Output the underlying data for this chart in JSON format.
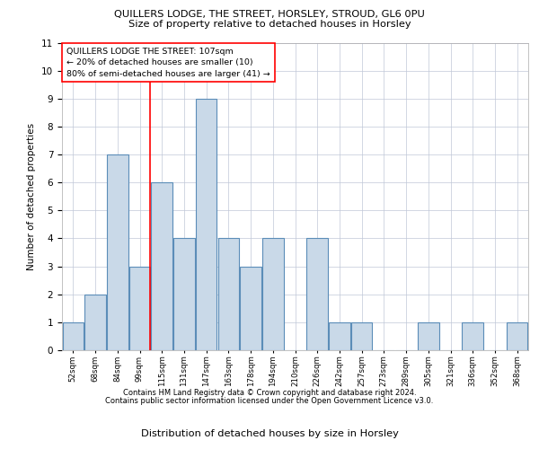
{
  "title1": "QUILLERS LODGE, THE STREET, HORSLEY, STROUD, GL6 0PU",
  "title2": "Size of property relative to detached houses in Horsley",
  "xlabel": "Distribution of detached houses by size in Horsley",
  "ylabel": "Number of detached properties",
  "categories": [
    "52sqm",
    "68sqm",
    "84sqm",
    "99sqm",
    "115sqm",
    "131sqm",
    "147sqm",
    "163sqm",
    "178sqm",
    "194sqm",
    "210sqm",
    "226sqm",
    "242sqm",
    "257sqm",
    "273sqm",
    "289sqm",
    "305sqm",
    "321sqm",
    "336sqm",
    "352sqm",
    "368sqm"
  ],
  "values": [
    1,
    2,
    7,
    3,
    6,
    4,
    9,
    4,
    3,
    4,
    0,
    4,
    1,
    1,
    0,
    0,
    1,
    0,
    1,
    0,
    1
  ],
  "bar_color": "#c9d9e8",
  "bar_edge_color": "#5b8db8",
  "red_line_index": 3,
  "annotation_title": "QUILLERS LODGE THE STREET: 107sqm",
  "annotation_line2": "← 20% of detached houses are smaller (10)",
  "annotation_line3": "80% of semi-detached houses are larger (41) →",
  "footer1": "Contains HM Land Registry data © Crown copyright and database right 2024.",
  "footer2": "Contains public sector information licensed under the Open Government Licence v3.0.",
  "ylim": [
    0,
    11
  ],
  "background_color": "#ffffff",
  "grid_color": "#c0c8d8"
}
